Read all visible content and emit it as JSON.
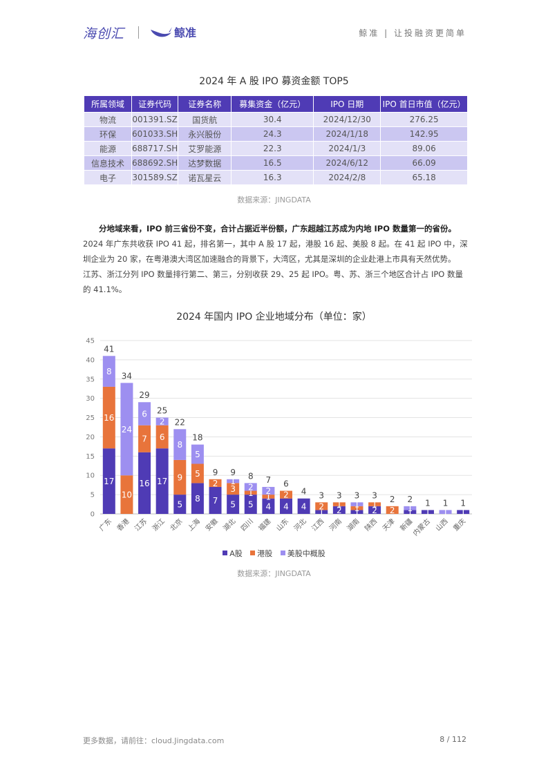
{
  "header": {
    "logo_text": "海创汇",
    "brand_name": "鲸准",
    "slogan": "鲸准 | 让投融资更简单"
  },
  "table": {
    "title": "2024 年 A 股 IPO 募资金额 TOP5",
    "columns": [
      "所属领域",
      "证券代码",
      "证券名称",
      "募集资金（亿元）",
      "IPO 日期",
      "IPO 首日市值（亿元）"
    ],
    "rows": [
      [
        "物流",
        "001391.SZ",
        "国货航",
        "30.4",
        "2024/12/30",
        "276.25"
      ],
      [
        "环保",
        "601033.SH",
        "永兴股份",
        "24.3",
        "2024/1/18",
        "142.95"
      ],
      [
        "能源",
        "688717.SH",
        "艾罗能源",
        "22.3",
        "2024/1/3",
        "89.06"
      ],
      [
        "信息技术",
        "688692.SH",
        "达梦数据",
        "16.5",
        "2024/6/12",
        "66.09"
      ],
      [
        "电子",
        "301589.SZ",
        "诺瓦星云",
        "16.3",
        "2024/2/8",
        "65.18"
      ]
    ],
    "source": "数据来源：JINGDATA"
  },
  "paragraph": {
    "bold_lead": "分地域来看，IPO 前三省份不变，合计占据近半份额，广东超越江苏成为内地 IPO 数量第一的省份。",
    "line2": "2024 年广东共收获 IPO 41 起，排名第一，其中 A 股 17 起，港股 16 起、美股 8 起。在 41 起 IPO 中，深",
    "line3": "圳企业为 20 家，在粤港澳大湾区加速融合的背景下，大湾区，尤其是深圳的企业赴港上市具有天然优势。",
    "line4": "江苏、浙江分列 IPO 数量排行第二、第三，分别收获 29、25 起 IPO。粤、苏、浙三个地区合计占 IPO 数量",
    "line5": "的 41.1%。"
  },
  "chart_title": "2024 年国内 IPO 企业地域分布（单位：家）",
  "chart_source": "数据来源：JINGDATA",
  "chart_data": {
    "type": "bar",
    "stacked": true,
    "categories": [
      "广东",
      "香港",
      "江苏",
      "浙江",
      "北京",
      "上海",
      "安徽",
      "湖北",
      "四川",
      "福建",
      "山东",
      "河北",
      "江西",
      "河南",
      "湖南",
      "陕西",
      "天津",
      "新疆",
      "内蒙古",
      "山西",
      "重庆"
    ],
    "series": [
      {
        "name": "A股",
        "color": "#4f3bb5",
        "values": [
          17,
          0,
          16,
          17,
          5,
          8,
          7,
          5,
          5,
          4,
          4,
          4,
          1,
          2,
          1,
          2,
          0,
          1,
          1,
          0,
          1
        ]
      },
      {
        "name": "港股",
        "color": "#e8743b",
        "values": [
          16,
          10,
          7,
          6,
          9,
          5,
          2,
          3,
          1,
          1,
          2,
          0,
          2,
          1,
          1,
          1,
          2,
          0,
          0,
          0,
          0
        ]
      },
      {
        "name": "美股中概股",
        "color": "#9d8ff0",
        "values": [
          8,
          24,
          6,
          2,
          8,
          5,
          0,
          1,
          2,
          2,
          0,
          0,
          0,
          0,
          1,
          0,
          0,
          1,
          0,
          1,
          0
        ]
      }
    ],
    "totals": [
      41,
      34,
      29,
      25,
      22,
      18,
      9,
      9,
      8,
      7,
      6,
      4,
      3,
      3,
      3,
      3,
      2,
      2,
      1,
      1,
      1
    ],
    "yticks": [
      0,
      5,
      10,
      15,
      20,
      25,
      30,
      35,
      40,
      45
    ],
    "ylim": [
      0,
      45
    ],
    "grid": true,
    "legend_position": "bottom"
  },
  "footer": {
    "link_text": "更多数据，请前往：cloud.Jingdata.com",
    "page": "8 / 112"
  }
}
